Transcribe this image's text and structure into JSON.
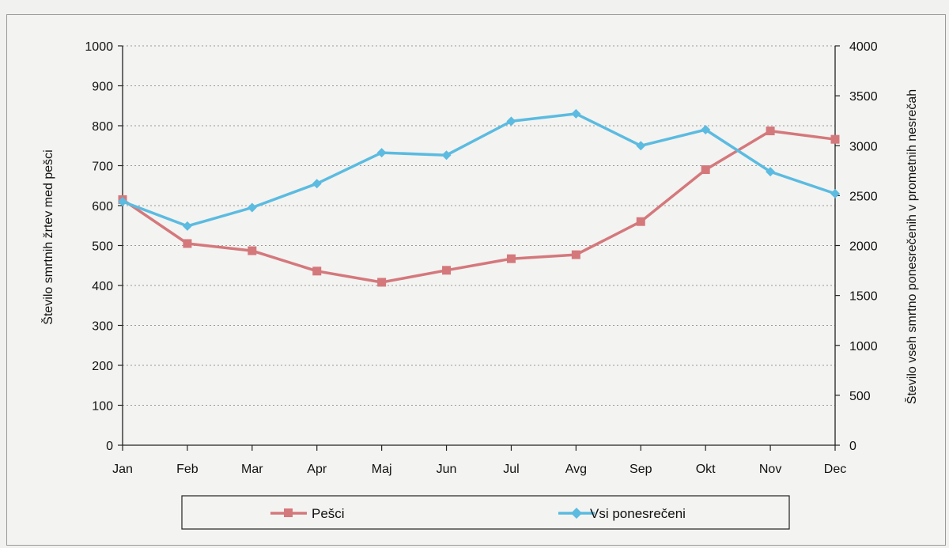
{
  "chart_data": {
    "type": "line",
    "categories": [
      "Jan",
      "Feb",
      "Mar",
      "Apr",
      "Maj",
      "Jun",
      "Jul",
      "Avg",
      "Sep",
      "Okt",
      "Nov",
      "Dec"
    ],
    "y_left": {
      "label": "Število smrtnih žrtev med pešci",
      "ylim": [
        0,
        1000
      ],
      "ticks": [
        "0",
        "100",
        "200",
        "300",
        "400",
        "500",
        "600",
        "700",
        "800",
        "900",
        "1000"
      ]
    },
    "y_right": {
      "label": "Število vseh smrtno ponesrečenih v prometnih nesrečah",
      "ylim": [
        0,
        4000
      ],
      "ticks": [
        "0",
        "500",
        "1000",
        "1500",
        "2000",
        "2500",
        "3000",
        "3500",
        "4000"
      ]
    },
    "series": [
      {
        "name": "Pešci",
        "axis": "left",
        "color": "#d4787c",
        "marker": "square",
        "values": [
          615,
          505,
          487,
          436,
          408,
          438,
          467,
          477,
          560,
          690,
          787,
          766
        ]
      },
      {
        "name": "Vsi ponesrečeni",
        "axis": "right",
        "color": "#5bbbe0",
        "marker": "diamond",
        "values": [
          2440,
          2195,
          2380,
          2620,
          2930,
          2905,
          3245,
          3320,
          3000,
          3160,
          2740,
          2520
        ]
      }
    ],
    "grid": "horizontal-dotted",
    "legend": "bottom"
  }
}
